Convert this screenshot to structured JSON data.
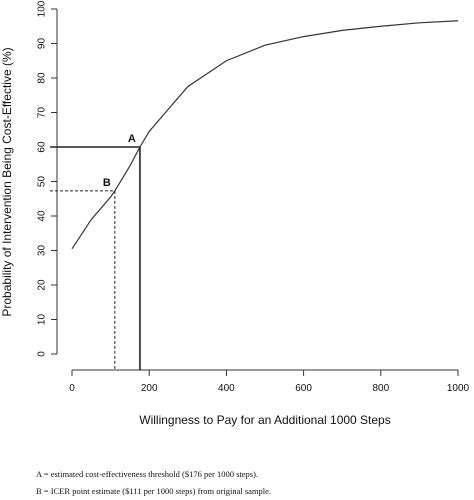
{
  "chart_data": {
    "type": "line",
    "title": "",
    "xlabel": "Willingness to Pay for an Additional 1000 Steps",
    "ylabel": "Probability of Intervention Being Cost-Effective (%)",
    "xlim": [
      0,
      1000
    ],
    "ylim": [
      0,
      100
    ],
    "xticks": [
      0,
      200,
      400,
      600,
      800,
      1000
    ],
    "yticks": [
      0,
      10,
      20,
      30,
      40,
      50,
      60,
      70,
      80,
      90,
      100
    ],
    "grid": false,
    "legend": "none",
    "series": [
      {
        "x": [
          0,
          50,
          100,
          111,
          150,
          176,
          200,
          300,
          400,
          500,
          600,
          700,
          800,
          900,
          1000
        ],
        "y": [
          30.5,
          39,
          45.5,
          47.3,
          54.5,
          60,
          64.5,
          77.5,
          85,
          89.5,
          92,
          93.8,
          95,
          96,
          96.6
        ]
      }
    ],
    "annotations": [
      {
        "label": "A",
        "x": 176,
        "y": 60,
        "style": "solid"
      },
      {
        "label": "B",
        "x": 111,
        "y": 47.3,
        "style": "dashed"
      }
    ]
  },
  "footnotes": [
    "A  = estimated cost-effectiveness threshold ($176 per 1000 steps).",
    "B  = ICER point estimate ($111 per 1000 steps) from original sample."
  ]
}
